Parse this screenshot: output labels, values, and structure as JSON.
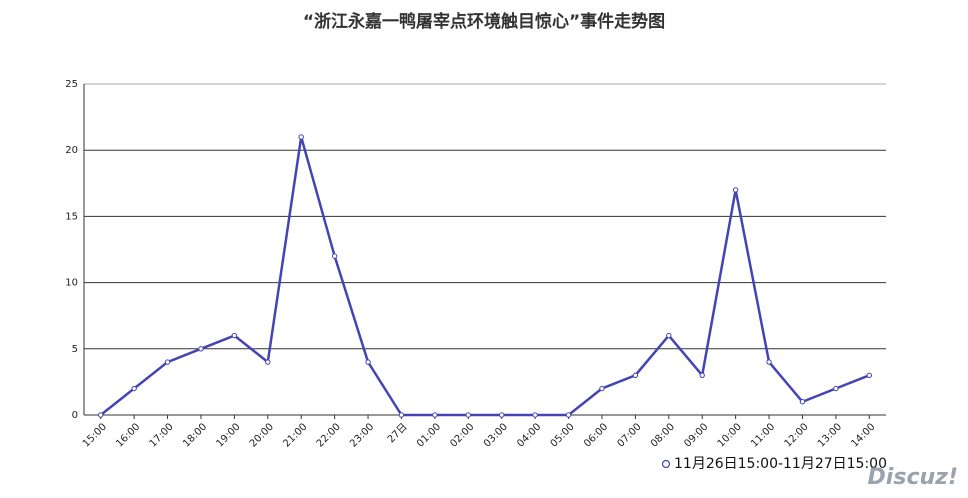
{
  "chart_data": {
    "type": "line",
    "title": "“浙江永嘉一鸭屠宰点环境触目惊心”事件走势图",
    "categories": [
      "15:00",
      "16:00",
      "17:00",
      "18:00",
      "19:00",
      "20:00",
      "21:00",
      "22:00",
      "23:00",
      "27日",
      "01:00",
      "02:00",
      "03:00",
      "04:00",
      "05:00",
      "06:00",
      "07:00",
      "08:00",
      "09:00",
      "10:00",
      "11:00",
      "12:00",
      "13:00",
      "14:00"
    ],
    "series": [
      {
        "name": "11月26日15:00-11月27日15:00",
        "color": "#4444b4",
        "values": [
          0,
          2,
          4,
          5,
          6,
          4,
          21,
          12,
          4,
          0,
          0,
          0,
          0,
          0,
          0,
          2,
          3,
          6,
          3,
          17,
          4,
          1,
          2,
          3
        ]
      }
    ],
    "ylim": [
      0,
      25
    ],
    "yticks": [
      0,
      5,
      10,
      15,
      20,
      25
    ],
    "grid": true,
    "watermark": "Discuz!"
  }
}
